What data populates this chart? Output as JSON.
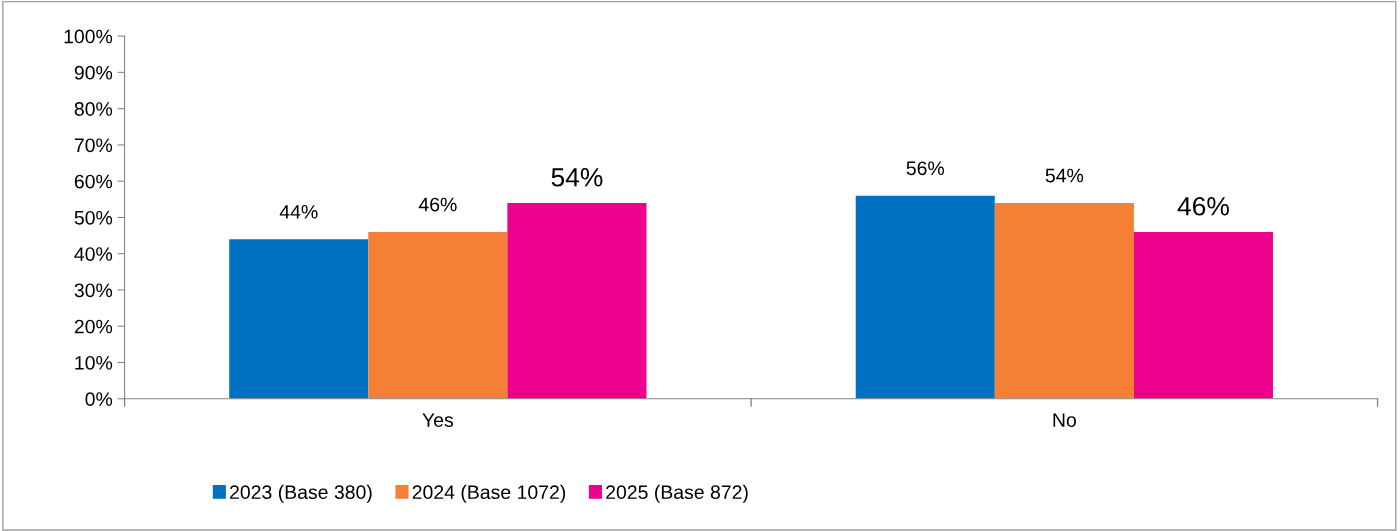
{
  "chart_data": {
    "type": "bar",
    "categories": [
      "Yes",
      "No"
    ],
    "series": [
      {
        "name": "2023 (Base 380)",
        "color": "#0070c0",
        "values": [
          44,
          56
        ],
        "value_labels": [
          "44%",
          "56%"
        ]
      },
      {
        "name": "2024 (Base 1072)",
        "color": "#f47f35",
        "values": [
          46,
          54
        ],
        "value_labels": [
          "46%",
          "54%"
        ]
      },
      {
        "name": "2025 (Base 872)",
        "color": "#ec008c",
        "values": [
          54,
          46
        ],
        "value_labels": [
          "54%",
          "46%"
        ]
      }
    ],
    "ylim": [
      0,
      100
    ],
    "yticks": [
      {
        "value": 0,
        "label": "0%"
      },
      {
        "value": 10,
        "label": "10%"
      },
      {
        "value": 20,
        "label": "20%"
      },
      {
        "value": 30,
        "label": "30%"
      },
      {
        "value": 40,
        "label": "40%"
      },
      {
        "value": 50,
        "label": "50%"
      },
      {
        "value": 60,
        "label": "60%"
      },
      {
        "value": 70,
        "label": "70%"
      },
      {
        "value": 80,
        "label": "80%"
      },
      {
        "value": 90,
        "label": "90%"
      },
      {
        "value": 100,
        "label": "100%"
      }
    ],
    "grid": false,
    "legend": "bottom"
  }
}
